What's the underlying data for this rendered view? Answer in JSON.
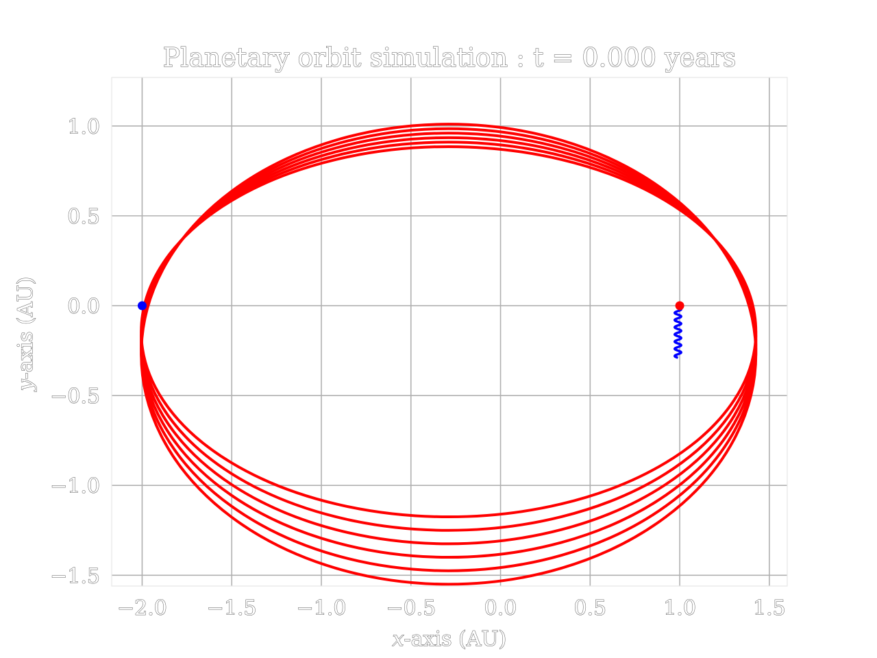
{
  "chart_data": {
    "type": "line",
    "title": "Planetary orbit simulation : t = 0.000 years",
    "xlabel_var": "x",
    "xlabel_rest": "-axis (AU)",
    "ylabel_var": "y",
    "ylabel_rest": "-axis (AU)",
    "xlim": [
      -2.17,
      1.6
    ],
    "ylim": [
      -1.56,
      1.27
    ],
    "x_ticks": [
      -2.0,
      -1.5,
      -1.0,
      -0.5,
      0.0,
      0.5,
      1.0,
      1.5
    ],
    "y_ticks": [
      -1.5,
      -1.0,
      -0.5,
      0.0,
      0.5,
      1.0
    ],
    "x_tick_labels": [
      "−2.0",
      "−1.5",
      "−1.0",
      "−0.5",
      "0.0",
      "0.5",
      "1.0",
      "1.5"
    ],
    "y_tick_labels": [
      "−1.5",
      "−1.0",
      "−0.5",
      "0.0",
      "0.5",
      "1.0"
    ],
    "grid": true,
    "series": [
      {
        "role": "orbit-path",
        "color": "#ff0000",
        "ellipses": [
          {
            "cx": -0.29,
            "cy": -0.145,
            "rx": 1.715,
            "ry": 1.03
          },
          {
            "cx": -0.29,
            "cy": -0.17,
            "rx": 1.715,
            "ry": 1.08
          },
          {
            "cx": -0.29,
            "cy": -0.195,
            "rx": 1.715,
            "ry": 1.13
          },
          {
            "cx": -0.29,
            "cy": -0.22,
            "rx": 1.715,
            "ry": 1.18
          },
          {
            "cx": -0.29,
            "cy": -0.245,
            "rx": 1.715,
            "ry": 1.23
          },
          {
            "cx": -0.29,
            "cy": -0.27,
            "rx": 1.715,
            "ry": 1.28
          }
        ]
      },
      {
        "role": "wobble-path",
        "color": "#0000ff",
        "x_center": 0.99,
        "amplitude": 0.018,
        "y_start": -0.01,
        "y_end": -0.29,
        "cycles": 7
      }
    ],
    "markers": [
      {
        "role": "blue-body",
        "x": -2.0,
        "y": 0.0,
        "color": "#0000ff"
      },
      {
        "role": "red-body",
        "x": 1.0,
        "y": 0.0,
        "color": "#ff0000"
      }
    ]
  }
}
